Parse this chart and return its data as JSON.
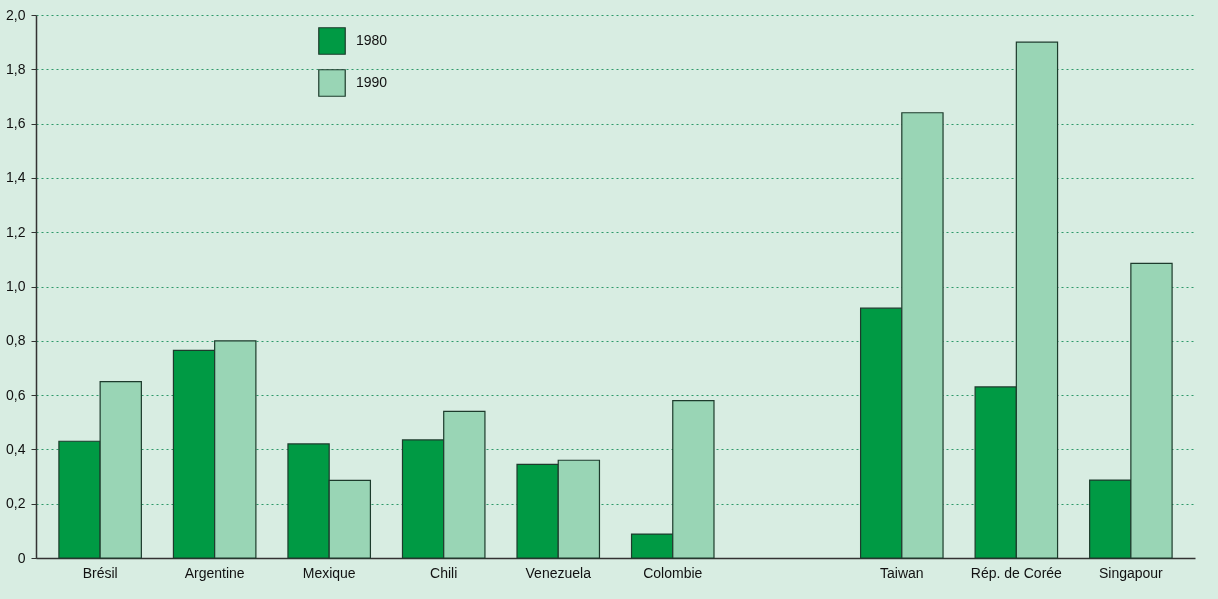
{
  "chart_data": {
    "type": "bar",
    "categories": [
      "Brésil",
      "Argentine",
      "Mexique",
      "Chili",
      "Venezuela",
      "Colombie",
      null,
      "Taiwan",
      "Rép. de Corée",
      "Singapour"
    ],
    "series": [
      {
        "name": "1980",
        "color": "#009a44",
        "values": [
          0.43,
          0.765,
          0.42,
          0.435,
          0.345,
          0.088,
          null,
          0.92,
          0.63,
          0.287
        ]
      },
      {
        "name": "1990",
        "color": "#99d5b5",
        "values": [
          0.65,
          0.8,
          0.286,
          0.54,
          0.36,
          0.58,
          null,
          1.64,
          1.9,
          1.085
        ]
      }
    ],
    "ylim": [
      0,
      2.0
    ],
    "yticks": [
      0,
      {
        "value": 0.2,
        "label": "0,2"
      },
      {
        "value": 0.4,
        "label": "0,4"
      },
      {
        "value": 0.6,
        "label": "0,6"
      },
      {
        "value": 0.8,
        "label": "0,8"
      },
      {
        "value": 1.0,
        "label": "1,0"
      },
      {
        "value": 1.2,
        "label": "1,2"
      },
      {
        "value": 1.4,
        "label": "1,4"
      },
      {
        "value": 1.6,
        "label": "1,6"
      },
      {
        "value": 1.8,
        "label": "1,8"
      },
      {
        "value": 2.0,
        "label": "2,0"
      }
    ],
    "grid": "y",
    "legend": "top left"
  }
}
